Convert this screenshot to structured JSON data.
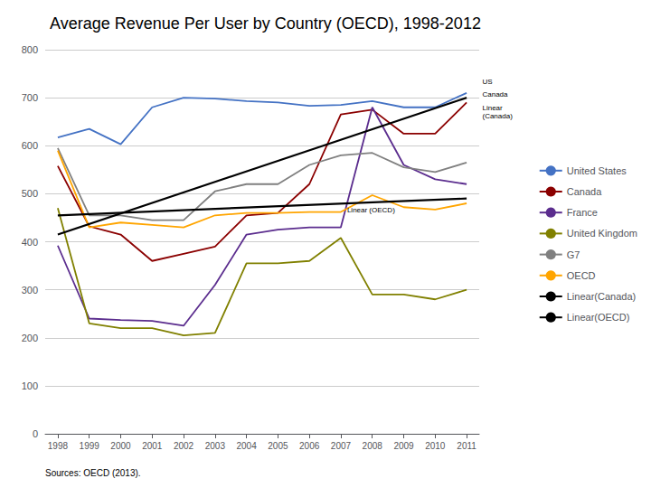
{
  "chart_data": {
    "type": "line",
    "title": "Average Revenue Per User by Country (OECD), 1998-2012",
    "source": "Sources: OECD (2013).",
    "x": [
      1998,
      1999,
      2000,
      2001,
      2002,
      2003,
      2004,
      2005,
      2006,
      2007,
      2008,
      2009,
      2010,
      2011
    ],
    "xlim": [
      1997.6,
      2011.4
    ],
    "xticks": [
      1998,
      1999,
      2000,
      2001,
      2002,
      2003,
      2004,
      2005,
      2006,
      2007,
      2008,
      2009,
      2010,
      2011
    ],
    "ylim": [
      0,
      800
    ],
    "yticks": [
      0,
      100,
      200,
      300,
      400,
      500,
      600,
      700,
      800
    ],
    "grid": true,
    "legend": "right",
    "series": [
      {
        "name": "United States",
        "color": "#4472C4",
        "values": [
          617,
          635,
          603,
          680,
          700,
          698,
          693,
          690,
          683,
          685,
          693,
          680,
          680,
          710
        ]
      },
      {
        "name": "Canada",
        "color": "#8B0000",
        "values": [
          558,
          432,
          415,
          360,
          375,
          390,
          455,
          460,
          520,
          665,
          675,
          625,
          625,
          690
        ]
      },
      {
        "name": "France",
        "color": "#5B2D8E",
        "values": [
          392,
          240,
          237,
          235,
          225,
          310,
          415,
          425,
          430,
          430,
          680,
          560,
          530,
          520
        ]
      },
      {
        "name": "United Kingdom",
        "color": "#808000",
        "values": [
          470,
          230,
          220,
          220,
          205,
          210,
          355,
          355,
          360,
          408,
          290,
          290,
          280,
          300
        ]
      },
      {
        "name": "G7",
        "color": "#808080",
        "values": [
          595,
          455,
          455,
          445,
          445,
          505,
          520,
          520,
          560,
          580,
          585,
          555,
          545,
          565
        ]
      },
      {
        "name": "OECD",
        "color": "#FFA500",
        "values": [
          590,
          430,
          440,
          435,
          430,
          455,
          460,
          460,
          462,
          462,
          497,
          472,
          467,
          480
        ]
      },
      {
        "name": "Linear(Canada)",
        "color": "#000000",
        "x": [
          1998,
          2011
        ],
        "values": [
          415,
          700
        ]
      },
      {
        "name": "Linear(OECD)",
        "color": "#000000",
        "x": [
          1998,
          2011
        ],
        "values": [
          455,
          490
        ]
      }
    ],
    "annotations": [
      {
        "text": "US",
        "x": 2011.5,
        "y": 725
      },
      {
        "text": "Canada",
        "x": 2011.5,
        "y": 700
      },
      {
        "text": "Linear",
        "x": 2011.5,
        "y": 672
      },
      {
        "text": "(Canada)",
        "x": 2011.5,
        "y": 655
      },
      {
        "text": "Linear (OECD)",
        "x": 2007.2,
        "y": 458
      }
    ]
  }
}
